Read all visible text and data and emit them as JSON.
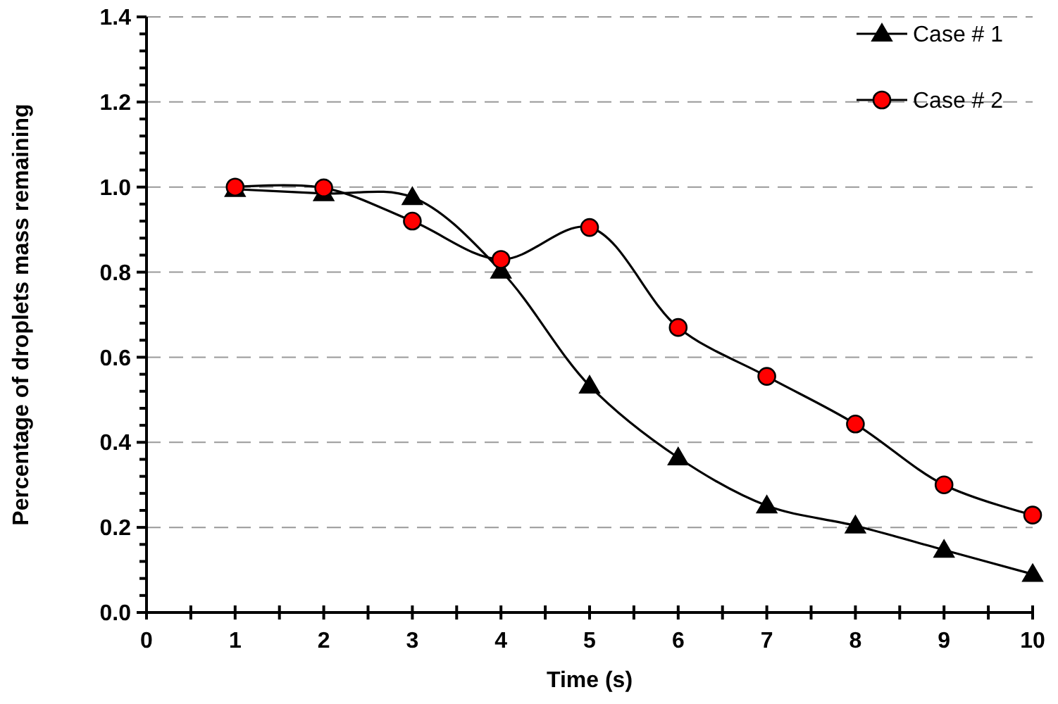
{
  "chart_data": {
    "type": "line",
    "xlabel": "Time (s)",
    "ylabel": "Percentage of droplets mass remaining",
    "x": [
      1,
      2,
      3,
      4,
      5,
      6,
      7,
      8,
      9,
      10
    ],
    "series": [
      {
        "name": "Case # 1",
        "color": "#000000",
        "marker": "triangle",
        "values": [
          0.995,
          0.985,
          0.976,
          0.803,
          0.533,
          0.364,
          0.251,
          0.204,
          0.147,
          0.09
        ]
      },
      {
        "name": "Case # 2",
        "color": "#ff0000",
        "marker": "circle",
        "values": [
          1.0,
          0.998,
          0.92,
          0.83,
          0.905,
          0.67,
          0.555,
          0.443,
          0.3,
          0.229
        ]
      }
    ],
    "xlim": [
      0,
      10
    ],
    "xticks": [
      0,
      {
        "value": 0.5,
        "label": null
      },
      1,
      {
        "value": 1.5,
        "label": null
      },
      2,
      {
        "value": 2.5,
        "label": null
      },
      3,
      {
        "value": 3.5,
        "label": null
      },
      4,
      {
        "value": 4.5,
        "label": null
      },
      5,
      {
        "value": 5.5,
        "label": null
      },
      6,
      {
        "value": 6.5,
        "label": null
      },
      7,
      {
        "value": 7.5,
        "label": null
      },
      8,
      {
        "value": 8.5,
        "label": null
      },
      9,
      {
        "value": 9.5,
        "label": null
      },
      10
    ],
    "ylim": [
      0,
      1.4
    ],
    "yticks": [
      {
        "value": 0,
        "label": "0.0"
      },
      {
        "value": 0.04,
        "label": null
      },
      {
        "value": 0.08,
        "label": null
      },
      {
        "value": 0.12,
        "label": null
      },
      {
        "value": 0.16,
        "label": null
      },
      {
        "value": 0.2,
        "label": "0.2"
      },
      {
        "value": 0.24,
        "label": null
      },
      {
        "value": 0.28,
        "label": null
      },
      {
        "value": 0.32,
        "label": null
      },
      {
        "value": 0.36,
        "label": null
      },
      {
        "value": 0.4,
        "label": "0.4"
      },
      {
        "value": 0.44,
        "label": null
      },
      {
        "value": 0.48,
        "label": null
      },
      {
        "value": 0.52,
        "label": null
      },
      {
        "value": 0.56,
        "label": null
      },
      {
        "value": 0.6,
        "label": "0.6"
      },
      {
        "value": 0.64,
        "label": null
      },
      {
        "value": 0.68,
        "label": null
      },
      {
        "value": 0.72,
        "label": null
      },
      {
        "value": 0.76,
        "label": null
      },
      {
        "value": 0.8,
        "label": "0.8"
      },
      {
        "value": 0.84,
        "label": null
      },
      {
        "value": 0.88,
        "label": null
      },
      {
        "value": 0.92,
        "label": null
      },
      {
        "value": 0.96,
        "label": null
      },
      {
        "value": 1.0,
        "label": "1.0"
      },
      {
        "value": 1.04,
        "label": null
      },
      {
        "value": 1.08,
        "label": null
      },
      {
        "value": 1.12,
        "label": null
      },
      {
        "value": 1.16,
        "label": null
      },
      {
        "value": 1.2,
        "label": "1.2"
      },
      {
        "value": 1.24,
        "label": null
      },
      {
        "value": 1.28,
        "label": null
      },
      {
        "value": 1.32,
        "label": null
      },
      {
        "value": 1.36,
        "label": null
      },
      {
        "value": 1.4,
        "label": "1.4"
      }
    ],
    "grid": "y",
    "legend": "top right",
    "line_style": "solid"
  }
}
